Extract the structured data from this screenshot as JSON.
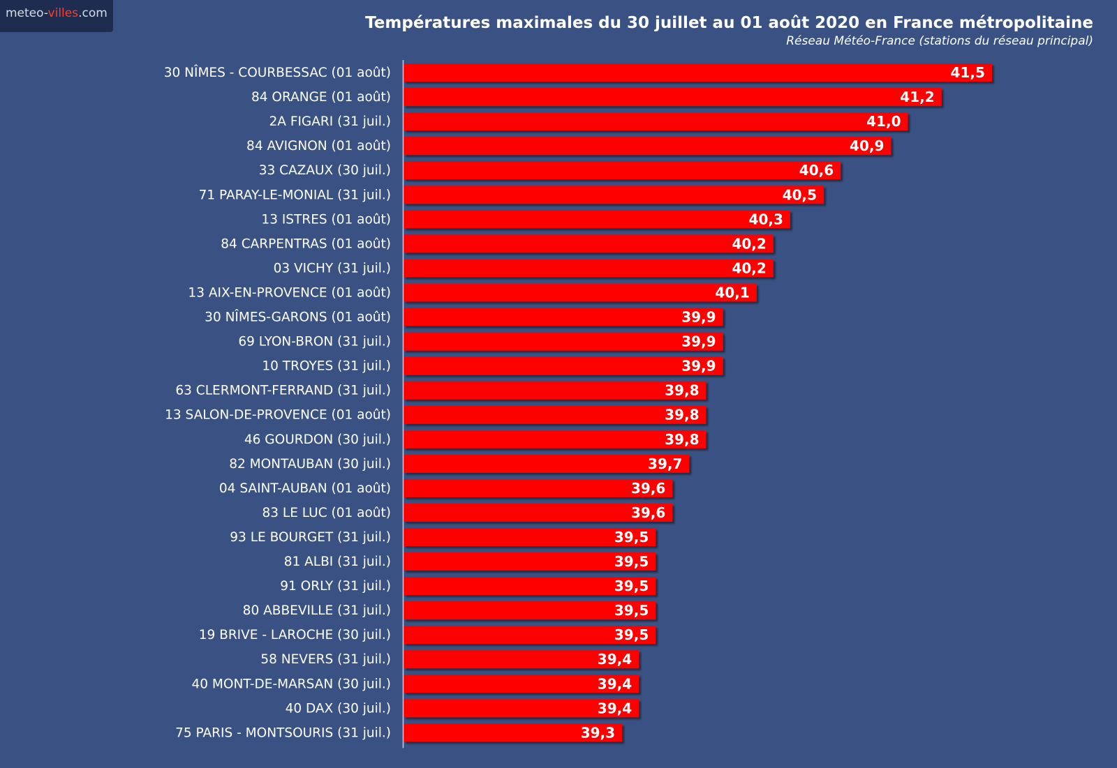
{
  "logo": {
    "prefix": "meteo-",
    "accent": "villes",
    "suffix": ".com"
  },
  "chart_data": {
    "type": "bar",
    "orientation": "horizontal",
    "title": "Températures maximales du 30 juillet au 01 août 2020 en France métropolitaine",
    "subtitle": "Réseau Météo-France (stations du réseau principal)",
    "xlim": [
      38.0,
      41.6
    ],
    "grid": false,
    "bar_color": "#ff0000",
    "background_color": "#3a5283",
    "categories": [
      "30 NÎMES - COURBESSAC (01 août)",
      "84 ORANGE (01 août)",
      "2A FIGARI (31 juil.)",
      "84 AVIGNON (01 août)",
      "33 CAZAUX (30 juil.)",
      "71 PARAY-LE-MONIAL (31 juil.)",
      "13 ISTRES (01 août)",
      "84 CARPENTRAS (01 août)",
      "03 VICHY (31 juil.)",
      "13 AIX-EN-PROVENCE (01 août)",
      "30 NÎMES-GARONS (01 août)",
      "69 LYON-BRON (31 juil.)",
      "10 TROYES (31 juil.)",
      "63 CLERMONT-FERRAND (31 juil.)",
      "13 SALON-DE-PROVENCE (01 août)",
      "46 GOURDON (30 juil.)",
      "82 MONTAUBAN (30 juil.)",
      "04 SAINT-AUBAN (01 août)",
      "83 LE LUC (01 août)",
      "93 LE BOURGET (31 juil.)",
      "81 ALBI (31 juil.)",
      "91 ORLY (31 juil.)",
      "80 ABBEVILLE (31 juil.)",
      "19 BRIVE - LAROCHE (30 juil.)",
      "58 NEVERS (31 juil.)",
      "40 MONT-DE-MARSAN (30 juil.)",
      "40 DAX (30 juil.)",
      "75 PARIS - MONTSOURIS (31 juil.)"
    ],
    "values": [
      41.5,
      41.2,
      41.0,
      40.9,
      40.6,
      40.5,
      40.3,
      40.2,
      40.2,
      40.1,
      39.9,
      39.9,
      39.9,
      39.8,
      39.8,
      39.8,
      39.7,
      39.6,
      39.6,
      39.5,
      39.5,
      39.5,
      39.5,
      39.5,
      39.4,
      39.4,
      39.4,
      39.3
    ],
    "value_labels": [
      "41,5",
      "41,2",
      "41,0",
      "40,9",
      "40,6",
      "40,5",
      "40,3",
      "40,2",
      "40,2",
      "40,1",
      "39,9",
      "39,9",
      "39,9",
      "39,8",
      "39,8",
      "39,8",
      "39,7",
      "39,6",
      "39,6",
      "39,5",
      "39,5",
      "39,5",
      "39,5",
      "39,5",
      "39,4",
      "39,4",
      "39,4",
      "39,3"
    ]
  }
}
